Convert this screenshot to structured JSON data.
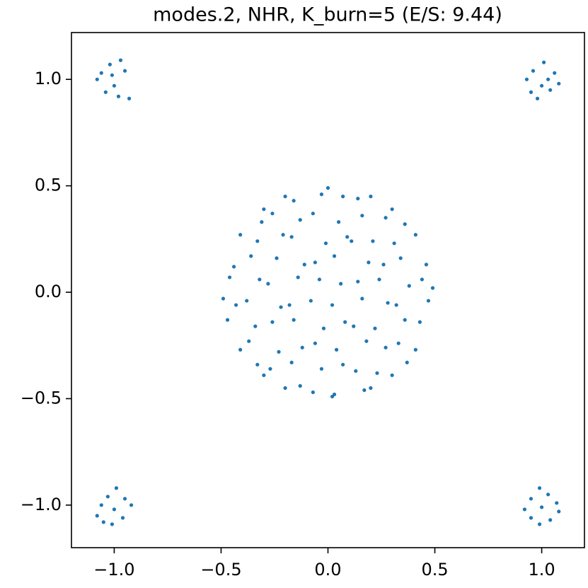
{
  "chart_data": {
    "type": "scatter",
    "title": "modes.2, NHR, K_burn=5 (E/S: 9.44)",
    "color": "#1f77b4",
    "xlim": [
      -1.2,
      1.2
    ],
    "ylim": [
      -1.2,
      1.22
    ],
    "xticks": [
      {
        "value": -1,
        "label": "−1.0"
      },
      {
        "value": -0.5,
        "label": "−0.5"
      },
      {
        "value": 0,
        "label": "0.0"
      },
      {
        "value": 0.5,
        "label": "0.5"
      },
      {
        "value": 1,
        "label": "1.0"
      }
    ],
    "yticks": [
      {
        "value": -1,
        "label": "−1.0"
      },
      {
        "value": -0.5,
        "label": "−0.5"
      },
      {
        "value": 0,
        "label": "0.0"
      },
      {
        "value": 0.5,
        "label": "0.5"
      },
      {
        "value": 1,
        "label": "1.0"
      }
    ],
    "x": [
      -0.47,
      -0.43,
      -0.46,
      -0.44,
      -0.33,
      -0.37,
      -0.34,
      -0.38,
      -0.32,
      -0.36,
      -0.33,
      -0.31,
      -0.27,
      -0.23,
      -0.26,
      -0.22,
      -0.28,
      -0.24,
      -0.21,
      -0.26,
      -0.13,
      -0.17,
      -0.12,
      -0.16,
      -0.18,
      -0.14,
      -0.11,
      -0.17,
      -0.13,
      -0.16,
      -0.07,
      -0.03,
      -0.06,
      -0.02,
      -0.08,
      -0.04,
      -0.06,
      -0.01,
      -0.07,
      -0.03,
      0.03,
      0.07,
      0.04,
      0.08,
      0.02,
      0.06,
      0.03,
      0.09,
      0.05,
      0.07,
      0.17,
      0.13,
      0.18,
      0.12,
      0.16,
      0.14,
      0.19,
      0.11,
      0.16,
      0.14,
      0.23,
      0.27,
      0.22,
      0.28,
      0.24,
      0.26,
      0.21,
      0.27,
      0.37,
      0.33,
      0.36,
      0.32,
      0.38,
      0.34,
      0.31,
      0.36,
      0.43,
      0.47,
      0.44,
      0.46,
      0.49,
      -0.49,
      0.0,
      0.02,
      0.3,
      -0.3,
      0.3,
      -0.3,
      0.41,
      -0.41,
      0.41,
      -0.41,
      0.2,
      -0.2,
      0.2,
      -0.2,
      -1.08,
      -1.06,
      -1.02,
      -0.97,
      -0.95,
      -1.0,
      -1.04,
      -0.98,
      -0.93,
      -1.01,
      0.93,
      0.96,
      1.01,
      1.06,
      1.08,
      1.04,
      0.98,
      1.0,
      0.95,
      1.03,
      -1.08,
      -1.06,
      -1.03,
      -0.99,
      -0.95,
      -0.92,
      -0.96,
      -1.01,
      -1.05,
      -1.0,
      0.92,
      0.95,
      0.99,
      1.03,
      1.07,
      1.08,
      1.04,
      0.99,
      0.95,
      1.0
    ],
    "y": [
      -0.13,
      -0.06,
      0.07,
      0.12,
      -0.34,
      -0.23,
      -0.16,
      -0.04,
      0.06,
      0.17,
      0.24,
      0.33,
      -0.36,
      -0.28,
      -0.14,
      -0.07,
      0.04,
      0.16,
      0.27,
      0.37,
      -0.44,
      -0.33,
      -0.26,
      -0.13,
      -0.06,
      0.07,
      0.13,
      0.26,
      0.34,
      0.43,
      -0.47,
      -0.36,
      -0.24,
      -0.17,
      -0.04,
      0.06,
      0.14,
      0.23,
      0.37,
      0.46,
      -0.48,
      -0.34,
      -0.27,
      -0.14,
      -0.06,
      0.04,
      0.17,
      0.26,
      0.33,
      0.45,
      -0.46,
      -0.37,
      -0.23,
      -0.16,
      -0.03,
      0.05,
      0.14,
      0.24,
      0.36,
      0.44,
      -0.38,
      -0.26,
      -0.17,
      -0.05,
      0.06,
      0.13,
      0.24,
      0.35,
      -0.33,
      -0.24,
      -0.13,
      -0.06,
      0.03,
      0.16,
      0.23,
      0.32,
      -0.14,
      -0.04,
      0.06,
      0.13,
      0.02,
      -0.03,
      0.49,
      -0.49,
      0.39,
      0.39,
      -0.39,
      -0.39,
      0.27,
      0.27,
      -0.27,
      -0.27,
      0.45,
      0.45,
      -0.45,
      -0.45,
      1.0,
      1.03,
      1.07,
      1.09,
      1.04,
      0.97,
      0.94,
      0.92,
      0.91,
      1.02,
      1.0,
      1.04,
      1.08,
      1.03,
      0.98,
      0.95,
      0.91,
      0.97,
      0.94,
      1.0,
      -1.05,
      -1.0,
      -0.96,
      -0.92,
      -0.97,
      -1.0,
      -1.06,
      -1.09,
      -1.08,
      -1.02,
      -1.02,
      -0.97,
      -0.92,
      -0.95,
      -0.99,
      -1.03,
      -1.07,
      -1.09,
      -1.06,
      -1.01
    ]
  }
}
